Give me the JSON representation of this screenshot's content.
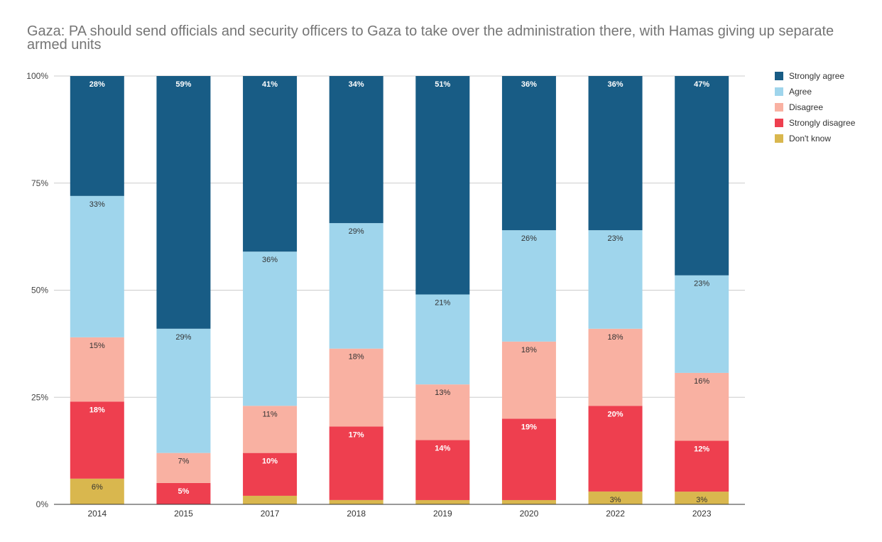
{
  "chart_data": {
    "type": "bar",
    "stacked": "percent",
    "title": "Gaza: PA should send officials and security officers to Gaza to take over the administration there, with Hamas giving up separate armed units",
    "xlabel": "",
    "ylabel": "",
    "ylim": [
      0,
      100
    ],
    "yticks": [
      "0%",
      "25%",
      "50%",
      "75%",
      "100%"
    ],
    "grid": true,
    "legend": "right",
    "categories": [
      "2014",
      "2015",
      "2017",
      "2018",
      "2019",
      "2020",
      "2022",
      "2023"
    ],
    "series": [
      {
        "name": "Don't know",
        "color": "#d9b74e",
        "values": [
          6,
          0,
          2,
          1,
          1,
          1,
          3,
          3
        ],
        "labeled": [
          true,
          false,
          false,
          false,
          false,
          false,
          true,
          true
        ]
      },
      {
        "name": "Strongly disagree",
        "color": "#ee3f4f",
        "values": [
          18,
          5,
          10,
          17,
          14,
          19,
          20,
          12
        ],
        "labeled": [
          true,
          true,
          true,
          true,
          true,
          true,
          true,
          true
        ]
      },
      {
        "name": "Disagree",
        "color": "#f9b1a2",
        "values": [
          15,
          7,
          11,
          18,
          13,
          18,
          18,
          16
        ],
        "labeled": [
          true,
          true,
          true,
          true,
          true,
          true,
          true,
          true
        ]
      },
      {
        "name": "Agree",
        "color": "#9fd5ec",
        "values": [
          33,
          29,
          36,
          29,
          21,
          26,
          23,
          23
        ],
        "labeled": [
          true,
          true,
          true,
          true,
          true,
          true,
          true,
          true
        ]
      },
      {
        "name": "Strongly agree",
        "color": "#185c85",
        "values": [
          28,
          59,
          41,
          34,
          51,
          36,
          36,
          47
        ],
        "labeled": [
          true,
          true,
          true,
          true,
          true,
          true,
          true,
          true
        ]
      }
    ]
  }
}
